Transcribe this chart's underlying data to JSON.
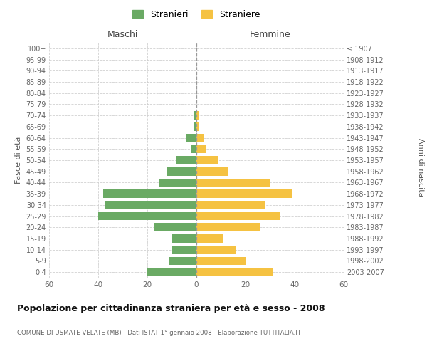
{
  "age_groups": [
    "0-4",
    "5-9",
    "10-14",
    "15-19",
    "20-24",
    "25-29",
    "30-34",
    "35-39",
    "40-44",
    "45-49",
    "50-54",
    "55-59",
    "60-64",
    "65-69",
    "70-74",
    "75-79",
    "80-84",
    "85-89",
    "90-94",
    "95-99",
    "100+"
  ],
  "birth_years": [
    "2003-2007",
    "1998-2002",
    "1993-1997",
    "1988-1992",
    "1983-1987",
    "1978-1982",
    "1973-1977",
    "1968-1972",
    "1963-1967",
    "1958-1962",
    "1953-1957",
    "1948-1952",
    "1943-1947",
    "1938-1942",
    "1933-1937",
    "1928-1932",
    "1923-1927",
    "1918-1922",
    "1913-1917",
    "1908-1912",
    "≤ 1907"
  ],
  "maschi": [
    20,
    11,
    10,
    10,
    17,
    40,
    37,
    38,
    15,
    12,
    8,
    2,
    4,
    1,
    1,
    0,
    0,
    0,
    0,
    0,
    0
  ],
  "femmine": [
    31,
    20,
    16,
    11,
    26,
    34,
    28,
    39,
    30,
    13,
    9,
    4,
    3,
    1,
    1,
    0,
    0,
    0,
    0,
    0,
    0
  ],
  "maschi_color": "#6aaa64",
  "femmine_color": "#f5c242",
  "title": "Popolazione per cittadinanza straniera per età e sesso - 2008",
  "subtitle": "COMUNE DI USMATE VELATE (MB) - Dati ISTAT 1° gennaio 2008 - Elaborazione TUTTITALIA.IT",
  "ylabel_left": "Fasce di età",
  "ylabel_right": "Anni di nascita",
  "xlabel_left": "Maschi",
  "xlabel_right": "Femmine",
  "legend_maschi": "Stranieri",
  "legend_femmine": "Straniere",
  "xlim": 60,
  "background_color": "#ffffff",
  "grid_color": "#cccccc"
}
